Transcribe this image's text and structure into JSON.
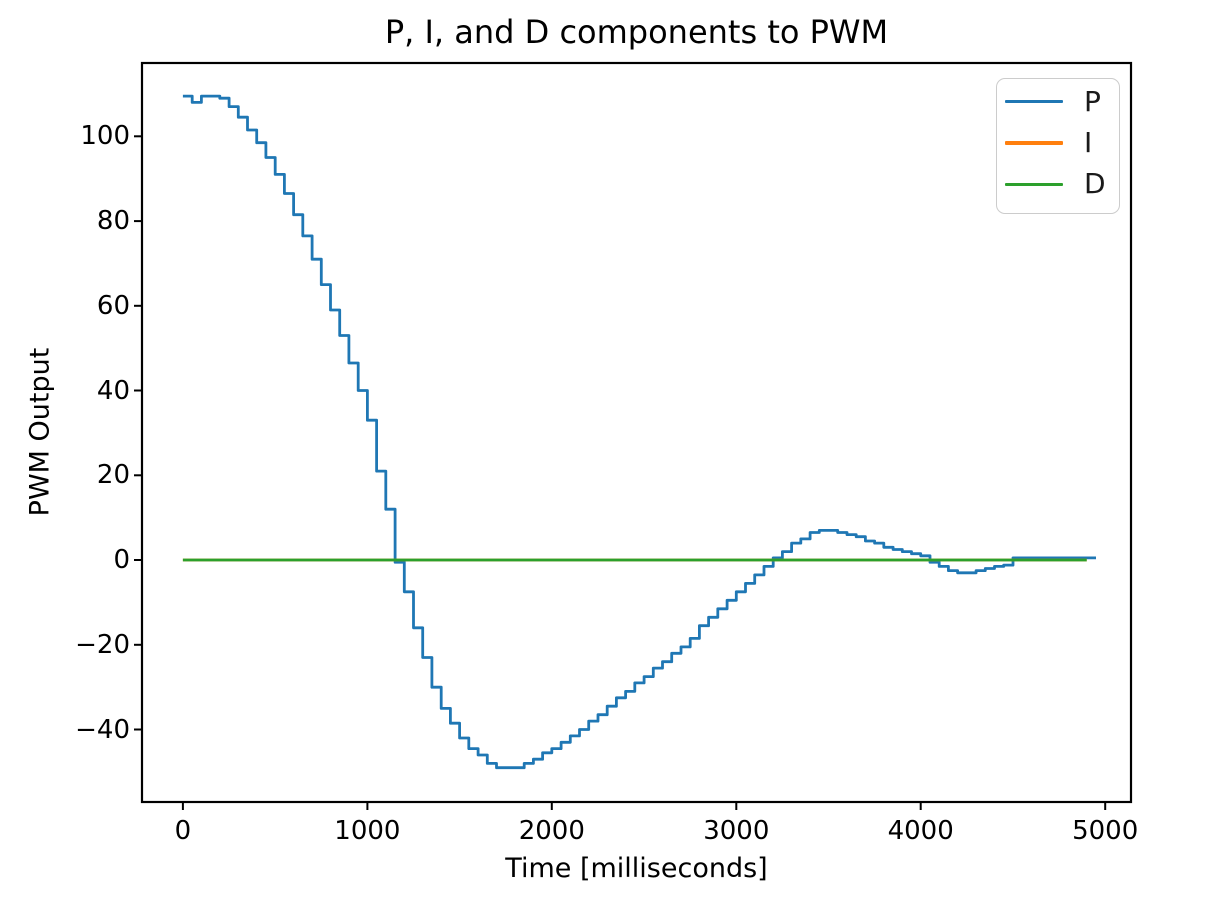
{
  "figure": {
    "background": "#ffffff",
    "frame_color": "#000000"
  },
  "chart_data": {
    "type": "line",
    "title": "P, I, and D components to PWM",
    "xlabel": "Time [milliseconds]",
    "ylabel": "PWM Output",
    "grid": false,
    "xlim": [
      -222,
      5140
    ],
    "ylim": [
      -57.1,
      117.3
    ],
    "xticks": {
      "values": [
        0,
        1000,
        2000,
        3000,
        4000,
        5000
      ],
      "labels": [
        "0",
        "1000",
        "2000",
        "3000",
        "4000",
        "5000"
      ]
    },
    "yticks": {
      "values": [
        -40,
        -20,
        0,
        20,
        40,
        60,
        80,
        100
      ],
      "labels": [
        "−40",
        "−20",
        "0",
        "20",
        "40",
        "60",
        "80",
        "100"
      ]
    },
    "legend": {
      "position": "upper right",
      "entries": [
        {
          "label": "P",
          "color": "#1f77b4"
        },
        {
          "label": "I",
          "color": "#ff7f0e"
        },
        {
          "label": "D",
          "color": "#2ca02c"
        }
      ]
    },
    "series": [
      {
        "name": "P",
        "color": "#1f77b4",
        "line_width": 2.8,
        "draw_style": "steps",
        "t_start_ms": 0,
        "t_step_ms": 50,
        "values": [
          109.5,
          108,
          109.5,
          109.5,
          109,
          107,
          104.5,
          101.5,
          98.5,
          95,
          91,
          86.5,
          81.5,
          76.5,
          71,
          65,
          59,
          53,
          46.5,
          40,
          33,
          21,
          12,
          -0.5,
          -7.5,
          -16,
          -23,
          -30,
          -35,
          -38.5,
          -42,
          -44.5,
          -46,
          -48,
          -49,
          -49,
          -49,
          -48,
          -47,
          -45.5,
          -44.5,
          -43,
          -41.5,
          -40,
          -38,
          -36.5,
          -34.5,
          -32.5,
          -31,
          -29,
          -27.5,
          -25.5,
          -24,
          -22,
          -20.5,
          -18.5,
          -15.5,
          -13.5,
          -11.5,
          -9.5,
          -7.5,
          -5.5,
          -3.5,
          -1.5,
          0.5,
          2,
          4,
          5,
          6.5,
          7,
          7,
          6.5,
          6,
          5.5,
          4.5,
          4,
          3,
          2.5,
          2,
          1.5,
          1,
          -0.5,
          -1.5,
          -2.5,
          -3,
          -3,
          -2.5,
          -2,
          -1.5,
          -1.2,
          0.5,
          0.5,
          0.5,
          0.5,
          0.5,
          0.5,
          0.5,
          0.5,
          0.5
        ]
      },
      {
        "name": "I",
        "color": "#ff7f0e",
        "line_width": 2.8,
        "draw_style": "constant",
        "constant_value": 0,
        "t_range_ms": [
          0,
          4900
        ],
        "note": "flat at 0, hidden beneath D line"
      },
      {
        "name": "D",
        "color": "#2ca02c",
        "line_width": 2.8,
        "draw_style": "constant",
        "constant_value": 0,
        "t_range_ms": [
          0,
          4900
        ]
      }
    ]
  }
}
